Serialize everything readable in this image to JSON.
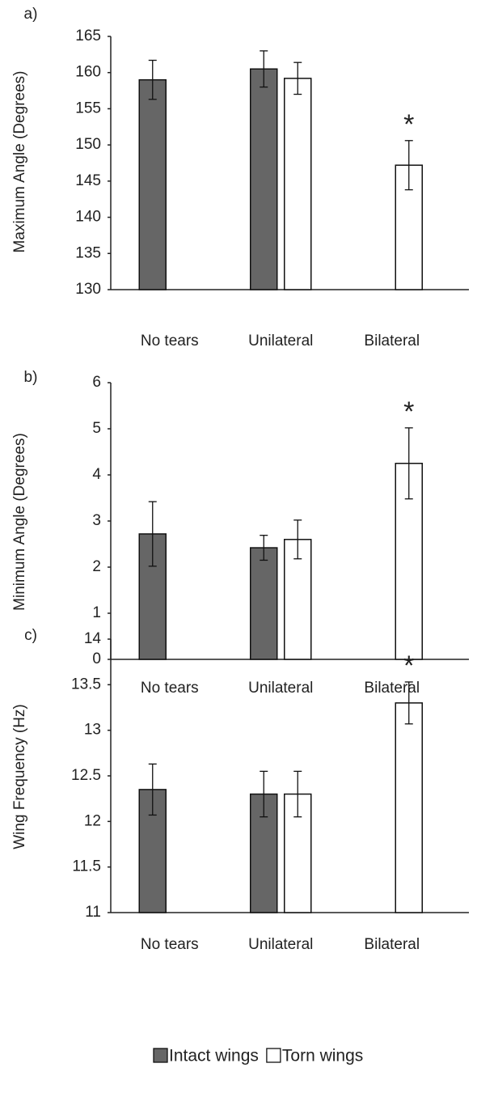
{
  "chart_data": [
    {
      "type": "bar",
      "panel_label": "a)",
      "y_label": "Maximum Angle (Degrees)",
      "categories": [
        "No tears",
        "Unilateral",
        "Bilateral"
      ],
      "series": [
        {
          "color": "#666666",
          "values": [
            159,
            160.5,
            null
          ],
          "errors": [
            2.7,
            2.5,
            null
          ]
        },
        {
          "color": "#ffffff",
          "values": [
            null,
            159.2,
            147.2
          ],
          "errors": [
            null,
            2.2,
            3.4
          ]
        }
      ],
      "annotation": "*",
      "ylim": [
        130,
        165
      ],
      "yticks": [
        130,
        135,
        140,
        145,
        150,
        155,
        160,
        165
      ]
    },
    {
      "type": "bar",
      "panel_label": "b)",
      "y_label": "Minimum Angle (Degrees)",
      "categories": [
        "No tears",
        "Unilateral",
        "Bilateral"
      ],
      "series": [
        {
          "color": "#666666",
          "values": [
            2.72,
            2.42,
            null
          ],
          "errors": [
            0.7,
            0.27,
            null
          ]
        },
        {
          "color": "#ffffff",
          "values": [
            null,
            2.6,
            4.25
          ],
          "errors": [
            null,
            0.42,
            0.77
          ]
        }
      ],
      "annotation": "*",
      "ylim": [
        0,
        6
      ],
      "yticks": [
        0,
        1,
        2,
        3,
        4,
        5,
        6
      ]
    },
    {
      "type": "bar",
      "panel_label": "c)",
      "y_label": "Wing Frequency (Hz)",
      "categories": [
        "No tears",
        "Unilateral",
        "Bilateral"
      ],
      "series": [
        {
          "name": "Intact wings",
          "color": "#666666",
          "values": [
            12.35,
            12.3,
            null
          ],
          "errors": [
            0.28,
            0.25,
            null
          ]
        },
        {
          "name": "Torn wings",
          "color": "#ffffff",
          "values": [
            null,
            12.3,
            13.3
          ],
          "errors": [
            null,
            0.25,
            0.23
          ]
        }
      ],
      "annotation": "*",
      "ylim": [
        11,
        14
      ],
      "yticks": [
        11,
        11.5,
        12,
        12.5,
        13,
        13.5,
        14
      ]
    }
  ]
}
